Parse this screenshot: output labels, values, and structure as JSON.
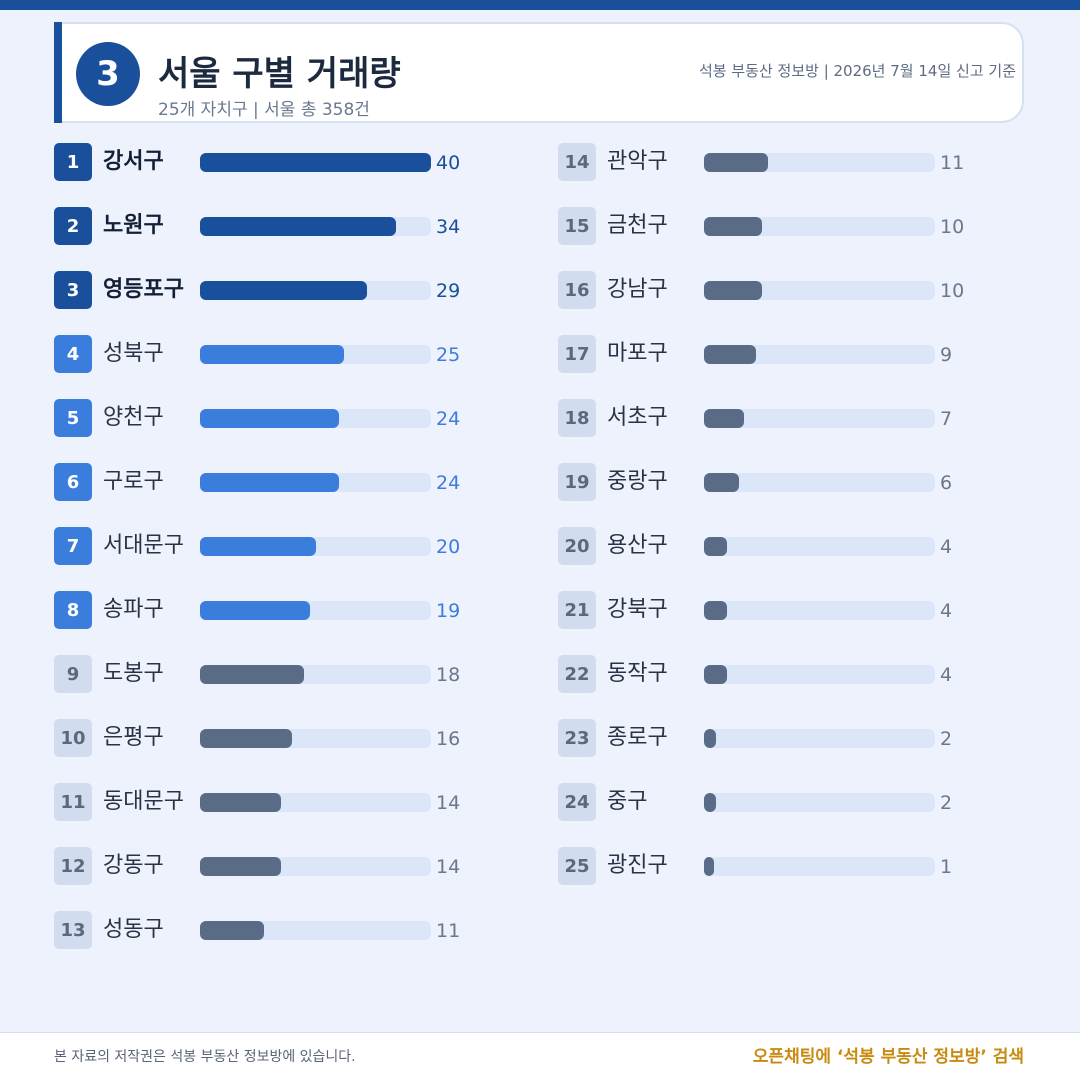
{
  "header": {
    "badge": "3",
    "title": "서울 구별 거래량",
    "subtitle": "25개 자치구 | 서울 총 358건",
    "source": "석봉 부동산 정보방 | 2026년 7월 14일 신고 기준"
  },
  "chart_data": {
    "type": "bar",
    "orientation": "horizontal",
    "title": "서울 구별 거래량",
    "xlim": [
      0,
      40
    ],
    "categories": [
      "강서구",
      "노원구",
      "영등포구",
      "성북구",
      "양천구",
      "구로구",
      "서대문구",
      "송파구",
      "도봉구",
      "은평구",
      "동대문구",
      "강동구",
      "성동구",
      "관악구",
      "금천구",
      "강남구",
      "마포구",
      "서초구",
      "중랑구",
      "용산구",
      "강북구",
      "동작구",
      "종로구",
      "중구",
      "광진구"
    ],
    "values": [
      40,
      34,
      29,
      25,
      24,
      24,
      20,
      19,
      18,
      16,
      14,
      14,
      11,
      11,
      10,
      10,
      9,
      7,
      6,
      4,
      4,
      4,
      2,
      2,
      1
    ],
    "ranks": [
      "1",
      "2",
      "3",
      "4",
      "5",
      "6",
      "7",
      "8",
      "9",
      "10",
      "11",
      "12",
      "13",
      "14",
      "15",
      "16",
      "17",
      "18",
      "19",
      "20",
      "21",
      "22",
      "23",
      "24",
      "25"
    ],
    "tier_colors": {
      "top3": "#1a4f9c",
      "top4_8": "#3b7ddd",
      "rest": "#5a6b87",
      "track": "#dbe6f8"
    }
  },
  "footer": {
    "copyright": "본 자료의 저작권은 석봉 부동산 정보방에 있습니다.",
    "cta": "오픈채팅에 ‘석봉 부동산 정보방’ 검색",
    "cta_color": "#c88b12"
  }
}
